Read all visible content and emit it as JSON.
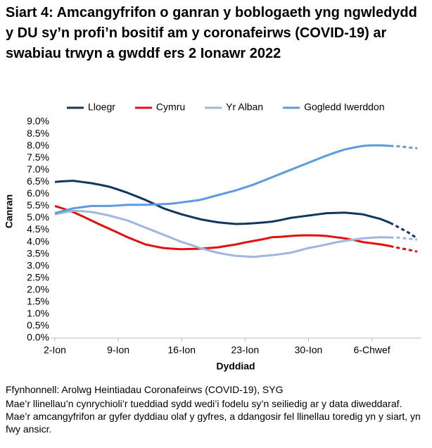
{
  "chart_data": {
    "type": "line",
    "title": "Siart 4: Amcangyfrifon o ganran y boblogaeth yng ngwledydd y DU sy’n profi’n bositif am y coronafeirws (COVID-19) ar swabiau trwyn a gwddf ers 2 Ionawr 2022",
    "x_label": "Dyddiad",
    "y_label": "Canran",
    "source": "Ffynhonnell: Arolwg Heintiadau Coronafeirws (COVID-19), SYG",
    "note": "Mae’r llinellau’n cynrychioli’r tueddiad sydd wedi’i fodelu sy’n seiliedig ar y data diweddaraf. Mae’r amcangyfrifon ar gyfer dyddiau olaf y gyfres, a ddangosir fel llinellau toredig yn y siart, yn fwy ansicr.",
    "categories": [
      "2-Ion",
      null,
      null,
      null,
      null,
      null,
      null,
      "9-Ion",
      null,
      null,
      null,
      null,
      null,
      null,
      "16-Ion",
      null,
      null,
      null,
      null,
      null,
      null,
      "23-Ion",
      null,
      null,
      null,
      null,
      null,
      null,
      "30-Ion",
      null,
      null,
      null,
      null,
      null,
      null,
      "6-Chwef",
      null,
      null,
      null,
      null,
      null
    ],
    "dashed_from": 37,
    "series": [
      {
        "name": "Lloegr",
        "color": "#12365e",
        "values": [
          6.5,
          6.53,
          6.55,
          6.5,
          6.45,
          6.38,
          6.3,
          6.18,
          6.05,
          5.9,
          5.75,
          5.58,
          5.4,
          5.27,
          5.15,
          5.05,
          4.95,
          4.88,
          4.82,
          4.78,
          4.75,
          4.76,
          4.78,
          4.81,
          4.85,
          4.92,
          5.0,
          5.05,
          5.1,
          5.15,
          5.2,
          5.21,
          5.22,
          5.19,
          5.15,
          5.05,
          4.95,
          4.8,
          4.6,
          4.4,
          4.15
        ]
      },
      {
        "name": "Cymru",
        "color": "#e3100f",
        "values": [
          5.5,
          5.38,
          5.25,
          5.08,
          4.9,
          4.72,
          4.55,
          4.38,
          4.2,
          4.05,
          3.9,
          3.82,
          3.75,
          3.72,
          3.7,
          3.71,
          3.72,
          3.75,
          3.78,
          3.84,
          3.9,
          3.98,
          4.05,
          4.12,
          4.2,
          4.22,
          4.25,
          4.27,
          4.28,
          4.27,
          4.25,
          4.2,
          4.15,
          4.08,
          4.0,
          3.95,
          3.9,
          3.83,
          3.75,
          3.68,
          3.6
        ]
      },
      {
        "name": "Yr Alban",
        "color": "#9fb6dd",
        "values": [
          5.15,
          5.23,
          5.3,
          5.28,
          5.25,
          5.18,
          5.1,
          5.0,
          4.9,
          4.75,
          4.6,
          4.45,
          4.3,
          4.15,
          4.0,
          3.88,
          3.75,
          3.65,
          3.55,
          3.48,
          3.42,
          3.4,
          3.38,
          3.42,
          3.45,
          3.5,
          3.55,
          3.65,
          3.75,
          3.82,
          3.9,
          3.98,
          4.05,
          4.1,
          4.15,
          4.18,
          4.2,
          4.19,
          4.18,
          4.14,
          4.1
        ]
      },
      {
        "name": "Gogledd Iwerddon",
        "color": "#5b9be0",
        "values": [
          5.2,
          5.3,
          5.4,
          5.45,
          5.5,
          5.5,
          5.5,
          5.52,
          5.55,
          5.55,
          5.55,
          5.56,
          5.58,
          5.6,
          5.65,
          5.7,
          5.75,
          5.85,
          5.95,
          6.05,
          6.15,
          6.27,
          6.4,
          6.55,
          6.7,
          6.85,
          7.0,
          7.15,
          7.3,
          7.45,
          7.6,
          7.73,
          7.85,
          7.93,
          8.0,
          8.02,
          8.02,
          8.0,
          7.98,
          7.94,
          7.9
        ]
      }
    ],
    "ylim": [
      0,
      9
    ],
    "yticks": [
      {
        "value": 0,
        "label": "0.0%"
      },
      {
        "value": 0.5,
        "label": "0.5%"
      },
      {
        "value": 1,
        "label": "1.0%"
      },
      {
        "value": 1.5,
        "label": "1.5%"
      },
      {
        "value": 2,
        "label": "2.0%"
      },
      {
        "value": 2.5,
        "label": "2.5%"
      },
      {
        "value": 3,
        "label": "3.0%"
      },
      {
        "value": 3.5,
        "label": "3.5%"
      },
      {
        "value": 4,
        "label": "4.0%"
      },
      {
        "value": 4.5,
        "label": "4.5%"
      },
      {
        "value": 5,
        "label": "5.0%"
      },
      {
        "value": 5.5,
        "label": "5.5%"
      },
      {
        "value": 6,
        "label": "6.0%"
      },
      {
        "value": 6.5,
        "label": "6.5%"
      },
      {
        "value": 7,
        "label": "7.0%"
      },
      {
        "value": 7.5,
        "label": "7.5%"
      },
      {
        "value": 8,
        "label": "8.0%"
      },
      {
        "value": 8.5,
        "label": "8.5%"
      },
      {
        "value": 9,
        "label": "9.0%"
      }
    ],
    "grid": false,
    "legend": "top"
  }
}
